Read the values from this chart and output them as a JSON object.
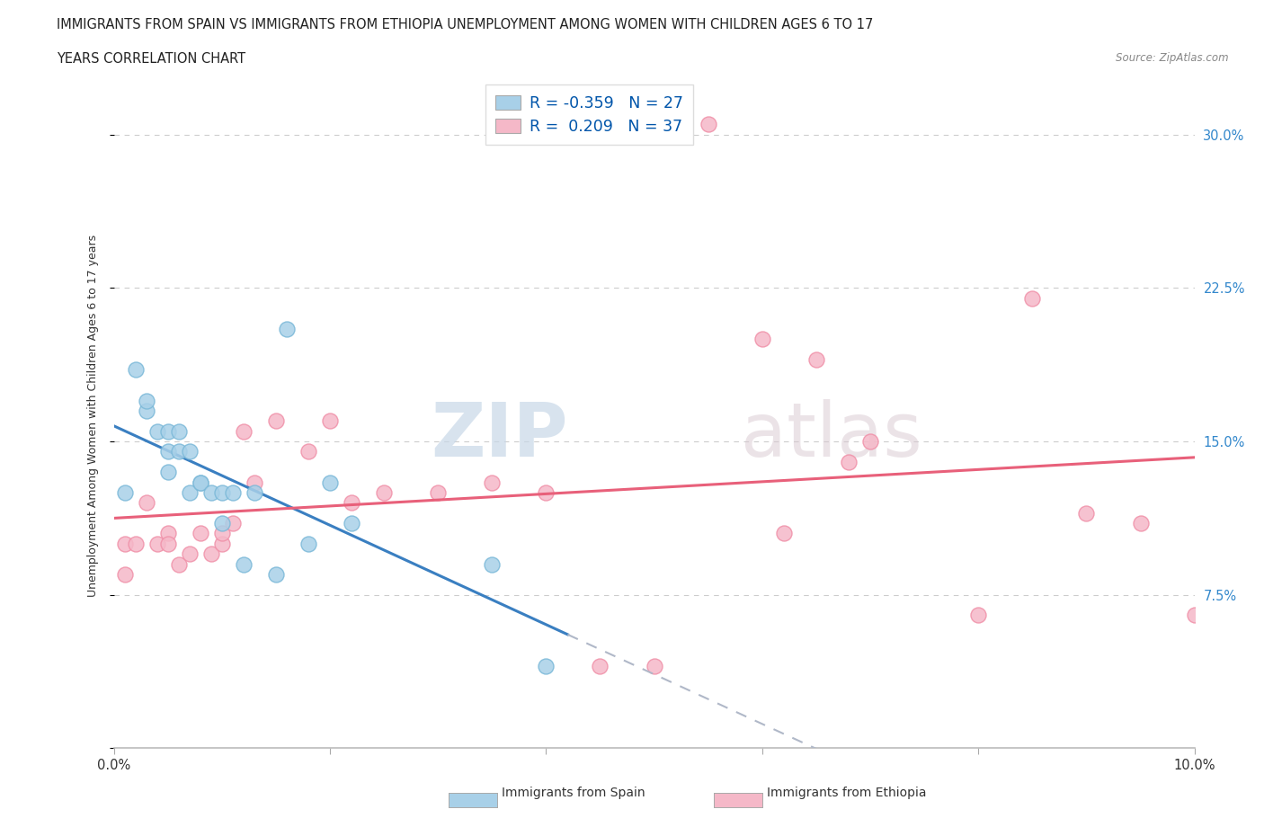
{
  "title_line1": "IMMIGRANTS FROM SPAIN VS IMMIGRANTS FROM ETHIOPIA UNEMPLOYMENT AMONG WOMEN WITH CHILDREN AGES 6 TO 17",
  "title_line2": "YEARS CORRELATION CHART",
  "source_text": "Source: ZipAtlas.com",
  "ylabel": "Unemployment Among Women with Children Ages 6 to 17 years",
  "xlim": [
    0.0,
    0.1
  ],
  "ylim": [
    0.0,
    0.325
  ],
  "xticks": [
    0.0,
    0.02,
    0.04,
    0.06,
    0.08,
    0.1
  ],
  "xticklabels": [
    "0.0%",
    "",
    "",
    "",
    "",
    "10.0%"
  ],
  "yticks": [
    0.0,
    0.075,
    0.15,
    0.225,
    0.3
  ],
  "yticklabels_right": [
    "",
    "7.5%",
    "15.0%",
    "22.5%",
    "30.0%"
  ],
  "watermark_zip": "ZIP",
  "watermark_atlas": "atlas",
  "legend_R_spain": "-0.359",
  "legend_N_spain": "27",
  "legend_R_ethiopia": "0.209",
  "legend_N_ethiopia": "37",
  "spain_fill": "#a8d0e8",
  "spain_edge": "#7ab8d8",
  "ethiopia_fill": "#f5b8c8",
  "ethiopia_edge": "#f090a8",
  "spain_line_color": "#3a7fc1",
  "ethiopia_line_color": "#e8607a",
  "dashed_color": "#b0b8c8",
  "background_color": "#ffffff",
  "grid_color": "#cccccc",
  "right_label_color": "#3388cc",
  "legend_R_color": "#0055aa",
  "legend_N_color": "#0055aa",
  "spain_x": [
    0.001,
    0.002,
    0.003,
    0.003,
    0.004,
    0.005,
    0.005,
    0.005,
    0.006,
    0.006,
    0.007,
    0.007,
    0.008,
    0.008,
    0.009,
    0.01,
    0.01,
    0.011,
    0.012,
    0.013,
    0.015,
    0.016,
    0.018,
    0.02,
    0.022,
    0.035,
    0.04
  ],
  "spain_y": [
    0.125,
    0.185,
    0.165,
    0.17,
    0.155,
    0.155,
    0.145,
    0.135,
    0.145,
    0.155,
    0.145,
    0.125,
    0.13,
    0.13,
    0.125,
    0.125,
    0.11,
    0.125,
    0.09,
    0.125,
    0.085,
    0.205,
    0.1,
    0.13,
    0.11,
    0.09,
    0.04
  ],
  "ethiopia_x": [
    0.001,
    0.001,
    0.002,
    0.003,
    0.004,
    0.005,
    0.005,
    0.006,
    0.007,
    0.008,
    0.009,
    0.01,
    0.01,
    0.011,
    0.012,
    0.013,
    0.015,
    0.018,
    0.02,
    0.022,
    0.025,
    0.03,
    0.035,
    0.04,
    0.045,
    0.05,
    0.055,
    0.06,
    0.062,
    0.065,
    0.068,
    0.07,
    0.08,
    0.085,
    0.09,
    0.095,
    0.1
  ],
  "ethiopia_y": [
    0.1,
    0.085,
    0.1,
    0.12,
    0.1,
    0.105,
    0.1,
    0.09,
    0.095,
    0.105,
    0.095,
    0.1,
    0.105,
    0.11,
    0.155,
    0.13,
    0.16,
    0.145,
    0.16,
    0.12,
    0.125,
    0.125,
    0.13,
    0.125,
    0.04,
    0.04,
    0.305,
    0.2,
    0.105,
    0.19,
    0.14,
    0.15,
    0.065,
    0.22,
    0.115,
    0.11,
    0.065
  ]
}
